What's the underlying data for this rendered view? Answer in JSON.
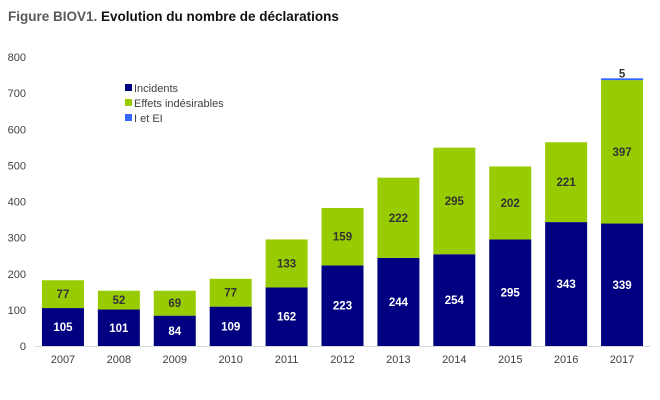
{
  "header": {
    "figure_label": "Figure BIOV1.",
    "title": "Evolution du nombre de déclarations"
  },
  "chart_data": {
    "type": "bar",
    "stacked": true,
    "categories": [
      "2007",
      "2008",
      "2009",
      "2010",
      "2011",
      "2012",
      "2013",
      "2014",
      "2015",
      "2016",
      "2017"
    ],
    "series": [
      {
        "name": "Incidents",
        "color": "#000080",
        "label_color": "#ffffff",
        "values": [
          105,
          101,
          84,
          109,
          162,
          223,
          244,
          254,
          295,
          343,
          339
        ]
      },
      {
        "name": "Effets indésirables",
        "color": "#99cc00",
        "label_color": "#333333",
        "values": [
          77,
          52,
          69,
          77,
          133,
          159,
          222,
          295,
          202,
          221,
          397
        ]
      },
      {
        "name": "I et EI",
        "color": "#3366ff",
        "label_color": "#333333",
        "values": [
          0,
          0,
          0,
          0,
          0,
          0,
          0,
          0,
          0,
          0,
          5
        ]
      }
    ],
    "ylim": [
      0,
      800
    ],
    "yticks": [
      "0",
      "100",
      "200",
      "300",
      "400",
      "500",
      "600",
      "700",
      "800"
    ],
    "xlabel": "",
    "ylabel": "",
    "grid": false,
    "legend_position": "top-left"
  }
}
